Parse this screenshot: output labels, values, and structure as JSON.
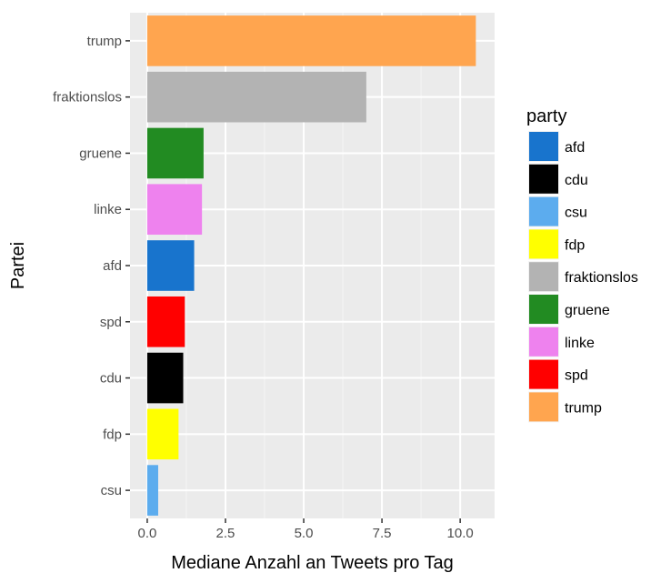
{
  "chart_data": {
    "type": "bar",
    "orientation": "horizontal",
    "xlabel": "Mediane Anzahl an Tweets pro Tag",
    "ylabel": "Partei",
    "xlim": [
      -0.55,
      11.1
    ],
    "x_ticks": [
      0,
      2.5,
      5,
      7.5,
      10
    ],
    "x_tick_labels": [
      "0.0",
      "2.5",
      "5.0",
      "7.5",
      "10.0"
    ],
    "categories": [
      "trump",
      "fraktionslos",
      "gruene",
      "linke",
      "afd",
      "spd",
      "cdu",
      "fdp",
      "csu"
    ],
    "values": [
      10.5,
      7.0,
      1.8,
      1.75,
      1.5,
      1.2,
      1.15,
      1.0,
      0.35
    ],
    "grid": true,
    "legend": {
      "title": "party",
      "position": "right",
      "entries": [
        {
          "label": "afd",
          "color": "#1874CD"
        },
        {
          "label": "cdu",
          "color": "#000000"
        },
        {
          "label": "csu",
          "color": "#5CACEE"
        },
        {
          "label": "fdp",
          "color": "#FFFF00"
        },
        {
          "label": "fraktionslos",
          "color": "#B3B3B3"
        },
        {
          "label": "gruene",
          "color": "#228B22"
        },
        {
          "label": "linke",
          "color": "#EE82EE"
        },
        {
          "label": "spd",
          "color": "#FF0000"
        },
        {
          "label": "trump",
          "color": "#FFA54F"
        }
      ]
    },
    "colors": {
      "panel_background": "#EBEBEB",
      "grid_major": "#FFFFFF",
      "grid_minor": "#F5F5F5"
    }
  }
}
